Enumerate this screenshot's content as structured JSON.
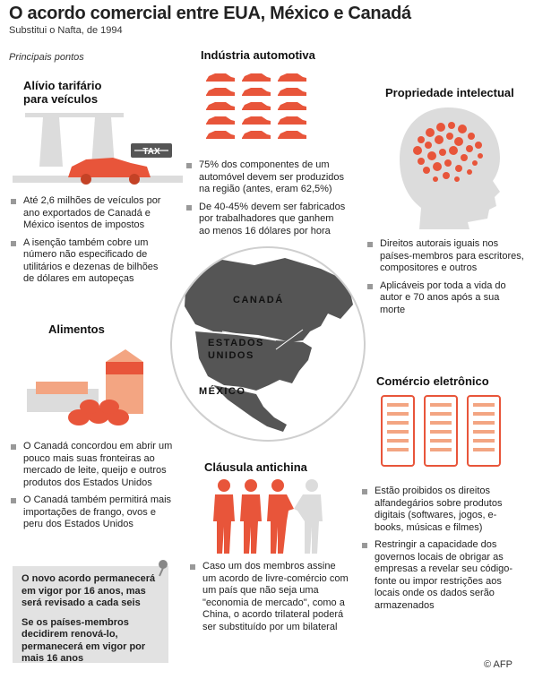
{
  "header": {
    "title": "O acordo comercial entre EUA, México e Canadá",
    "subtitle": "Substitui o Nafta, de 1994",
    "kicker": "Principais pontos"
  },
  "colors": {
    "accent": "#e8553a",
    "light_accent": "#f3a582",
    "grey": "#999999",
    "note_bg": "#e2e2e2"
  },
  "sections": {
    "tarifario": {
      "title_line1": "Alívio tarifário",
      "title_line2": "para veículos",
      "tag": "TAX",
      "bullets": [
        "Até 2,6 milhões de veículos por ano exportados de Canadá e México isentos de impostos",
        "A isenção também cobre um número não especificado de utilitários e dezenas de bilhões de dólares em autopeças"
      ]
    },
    "automotiva": {
      "title": "Indústria automotiva",
      "bullets": [
        "75% dos componentes de um automóvel devem ser produzidos na região (antes, eram 62,5%)",
        "De 40-45% devem ser fabricados por trabalhadores que ganhem ao menos 16 dólares por hora"
      ]
    },
    "propriedade": {
      "title": "Propriedade intelectual",
      "bullets": [
        "Direitos autorais iguais nos países-membros para escritores, compositores e outros",
        "Aplicáveis por toda a vida do autor e 70 anos após a sua morte"
      ]
    },
    "alimentos": {
      "title": "Alimentos",
      "bullets": [
        "O Canadá concordou em abrir um pouco mais suas fronteiras ao mercado de leite, queijo e outros produtos dos Estados Unidos",
        "O Canadá também permitirá mais importações de frango, ovos e peru dos Estados Unidos"
      ]
    },
    "comercio": {
      "title": "Comércio eletrônico",
      "bullets": [
        "Estão proibidos os direitos alfandegários sobre produtos digitais (softwares, jogos, e-books, músicas e filmes)",
        "Restringir a capacidade dos governos locais de obrigar as empresas a revelar seu código-fonte ou impor restrições aos locais onde os dados serão armazenados"
      ]
    },
    "antichina": {
      "title": "Cláusula antichina",
      "bullets": [
        "Caso um dos membros assine um acordo de livre-comércio com um país que não seja uma \"economia de mercado\", como a China, o acordo trilateral poderá ser substituído por um bilateral"
      ]
    }
  },
  "map": {
    "canada": "CANADÁ",
    "usa_line1": "ESTADOS",
    "usa_line2": "UNIDOS",
    "mexico": "MÉXICO"
  },
  "note": {
    "p1": "O novo acordo permanecerá em vigor por 16 anos, mas será revisado a cada seis",
    "p2": "Se os países-membros decidirem renová-lo, permanecerá em vigor por mais 16 anos"
  },
  "credit": "© AFP"
}
